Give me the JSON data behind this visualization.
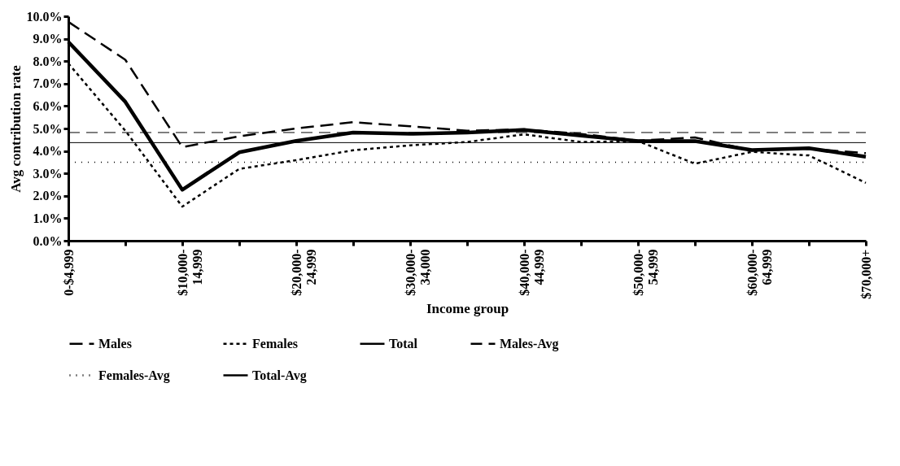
{
  "chart_data": {
    "type": "line",
    "xlabel": "Income group",
    "ylabel": "Avg contribution rate",
    "categories": [
      "0-$4,999",
      null,
      "$10,000-\n14,999",
      null,
      "$20,000-\n24,999",
      null,
      "$30,000-\n34,000",
      null,
      "$40,000-\n44,999",
      null,
      "$50,000-\n54,999",
      null,
      "$60,000-\n64,999",
      null,
      "$70,000+"
    ],
    "series": [
      {
        "name": "Males",
        "color": "#000000",
        "line_style": "dashed",
        "values": [
          9.75,
          8.06,
          4.17,
          4.65,
          5.0,
          5.28,
          5.1,
          4.9,
          4.96,
          4.76,
          4.46,
          4.6,
          4.02,
          4.1,
          3.9
        ]
      },
      {
        "name": "Females",
        "color": "#000000",
        "line_style": "dotted",
        "values": [
          7.9,
          4.9,
          1.52,
          3.2,
          3.59,
          4.03,
          4.25,
          4.4,
          4.74,
          4.4,
          4.44,
          3.43,
          3.96,
          3.8,
          2.58
        ]
      },
      {
        "name": "Total",
        "color": "#000000",
        "line_style": "solid",
        "values": [
          8.86,
          6.19,
          2.27,
          3.94,
          4.45,
          4.82,
          4.76,
          4.82,
          4.94,
          4.68,
          4.44,
          4.44,
          4.04,
          4.12,
          3.74
        ]
      }
    ],
    "ref_lines": [
      {
        "axis": "y",
        "value": 4.82,
        "label": "Males-Avg",
        "color": "#000000",
        "line_style": "dashed"
      },
      {
        "axis": "y",
        "value": 3.5,
        "label": "Females-Avg",
        "color": "#000000",
        "line_style": "dotted"
      },
      {
        "axis": "y",
        "value": 4.37,
        "label": "Total-Avg",
        "color": "#000000",
        "line_style": "solid"
      }
    ],
    "ylim": [
      0,
      10
    ],
    "yticks": [
      {
        "value": 0,
        "label": "0.0%"
      },
      {
        "value": 1,
        "label": "1.0%"
      },
      {
        "value": 2,
        "label": "2.0%"
      },
      {
        "value": 3,
        "label": "3.0%"
      },
      {
        "value": 4,
        "label": "4.0%"
      },
      {
        "value": 5,
        "label": "5.0%"
      },
      {
        "value": 6,
        "label": "6.0%"
      },
      {
        "value": 7,
        "label": "7.0%"
      },
      {
        "value": 8,
        "label": "8.0%"
      },
      {
        "value": 9,
        "label": "9.0%"
      },
      {
        "value": 10,
        "label": "10.0%"
      }
    ],
    "grid": false,
    "legend": "bottom"
  }
}
